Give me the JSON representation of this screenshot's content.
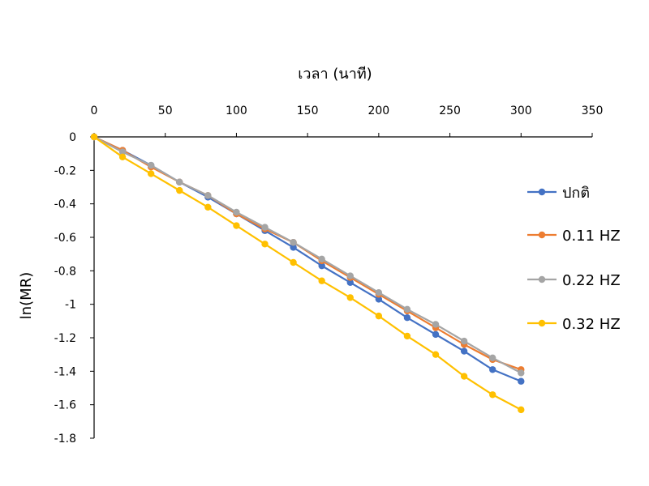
{
  "chart_data": {
    "type": "line",
    "xlabel": "เวลา (นาที)",
    "ylabel": "ln(MR)",
    "xlim": [
      0,
      350
    ],
    "ylim": [
      -1.8,
      0
    ],
    "x_ticks": [
      "0",
      "50",
      "100",
      "150",
      "200",
      "250",
      "300",
      "350"
    ],
    "y_ticks": [
      "0",
      "-0.2",
      "-0.4",
      "-0.6",
      "-0.8",
      "-1",
      "-1.2",
      "-1.4",
      "-1.6",
      "-1.8"
    ],
    "x_axis_position": "top",
    "grid": false,
    "legend_position": "right",
    "x": [
      0,
      20,
      40,
      60,
      80,
      100,
      120,
      140,
      160,
      180,
      200,
      220,
      240,
      260,
      280,
      300
    ],
    "series": [
      {
        "name": "ปกติ",
        "color": "#4472C4",
        "values": [
          0,
          -0.08,
          -0.17,
          -0.27,
          -0.36,
          -0.46,
          -0.56,
          -0.66,
          -0.77,
          -0.87,
          -0.97,
          -1.08,
          -1.18,
          -1.28,
          -1.39,
          -1.46
        ]
      },
      {
        "name": "0.11 HZ",
        "color": "#ED7D31",
        "values": [
          0,
          -0.08,
          -0.18,
          -0.27,
          -0.35,
          -0.46,
          -0.55,
          -0.63,
          -0.74,
          -0.84,
          -0.94,
          -1.04,
          -1.14,
          -1.24,
          -1.33,
          -1.39
        ]
      },
      {
        "name": "0.22 HZ",
        "color": "#A5A5A5",
        "values": [
          0,
          -0.09,
          -0.17,
          -0.27,
          -0.35,
          -0.45,
          -0.54,
          -0.63,
          -0.73,
          -0.83,
          -0.93,
          -1.03,
          -1.12,
          -1.22,
          -1.32,
          -1.41
        ]
      },
      {
        "name": "0.32 HZ",
        "color": "#FFC000",
        "values": [
          0,
          -0.12,
          -0.22,
          -0.32,
          -0.42,
          -0.53,
          -0.64,
          -0.75,
          -0.86,
          -0.96,
          -1.07,
          -1.19,
          -1.3,
          -1.43,
          -1.54,
          -1.63
        ]
      }
    ]
  }
}
